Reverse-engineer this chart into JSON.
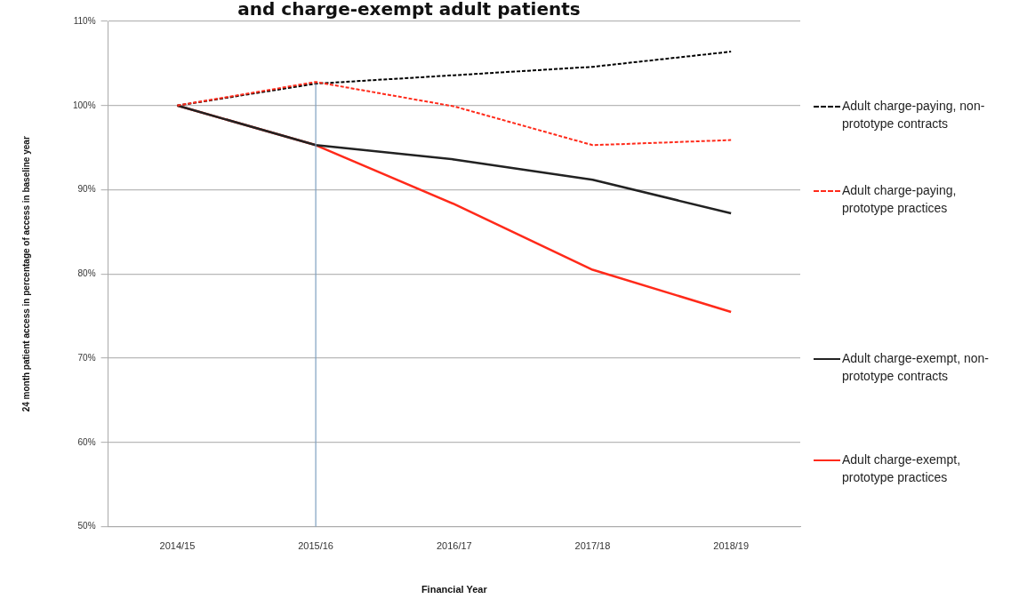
{
  "chart_data": {
    "type": "line",
    "title": "and charge-exempt adult patients",
    "xlabel": "Financial Year",
    "ylabel": "24 month patient access in percentage of access in baseline year",
    "categories": [
      "2014/15",
      "2015/16",
      "2016/17",
      "2017/18",
      "2018/19"
    ],
    "series": [
      {
        "name": "Adult charge-paying, non-prototype contracts",
        "color": "#000000",
        "line_style": "dashed",
        "values": [
          100,
          102.6,
          103.6,
          104.6,
          106.4
        ]
      },
      {
        "name": "Adult charge-paying, prototype practices",
        "color": "#ff2a1a",
        "line_style": "dashed",
        "values": [
          100,
          102.8,
          99.9,
          95.3,
          95.9
        ]
      },
      {
        "name": "Adult charge-exempt, non-prototype contracts",
        "color": "#222222",
        "line_style": "solid",
        "values": [
          100,
          95.3,
          93.6,
          91.2,
          87.2
        ]
      },
      {
        "name": "Adult charge-exempt, prototype practices",
        "color": "#ff2a1a",
        "line_style": "solid",
        "values": [
          100,
          95.3,
          88.3,
          80.5,
          75.5
        ]
      }
    ],
    "ylim": [
      50,
      110
    ],
    "yticks": [
      {
        "value": 50,
        "label": "50%"
      },
      {
        "value": 60,
        "label": "60%"
      },
      {
        "value": 70,
        "label": "70%"
      },
      {
        "value": 80,
        "label": "80%"
      },
      {
        "value": 90,
        "label": "90%"
      },
      {
        "value": 100,
        "label": "100%"
      },
      {
        "value": 110,
        "label": "110%"
      }
    ],
    "ref_lines": [
      {
        "axis": "x",
        "value": "2015/16",
        "color": "#7f9fc0"
      }
    ],
    "grid": "y",
    "legend": "right",
    "marker": "none"
  }
}
